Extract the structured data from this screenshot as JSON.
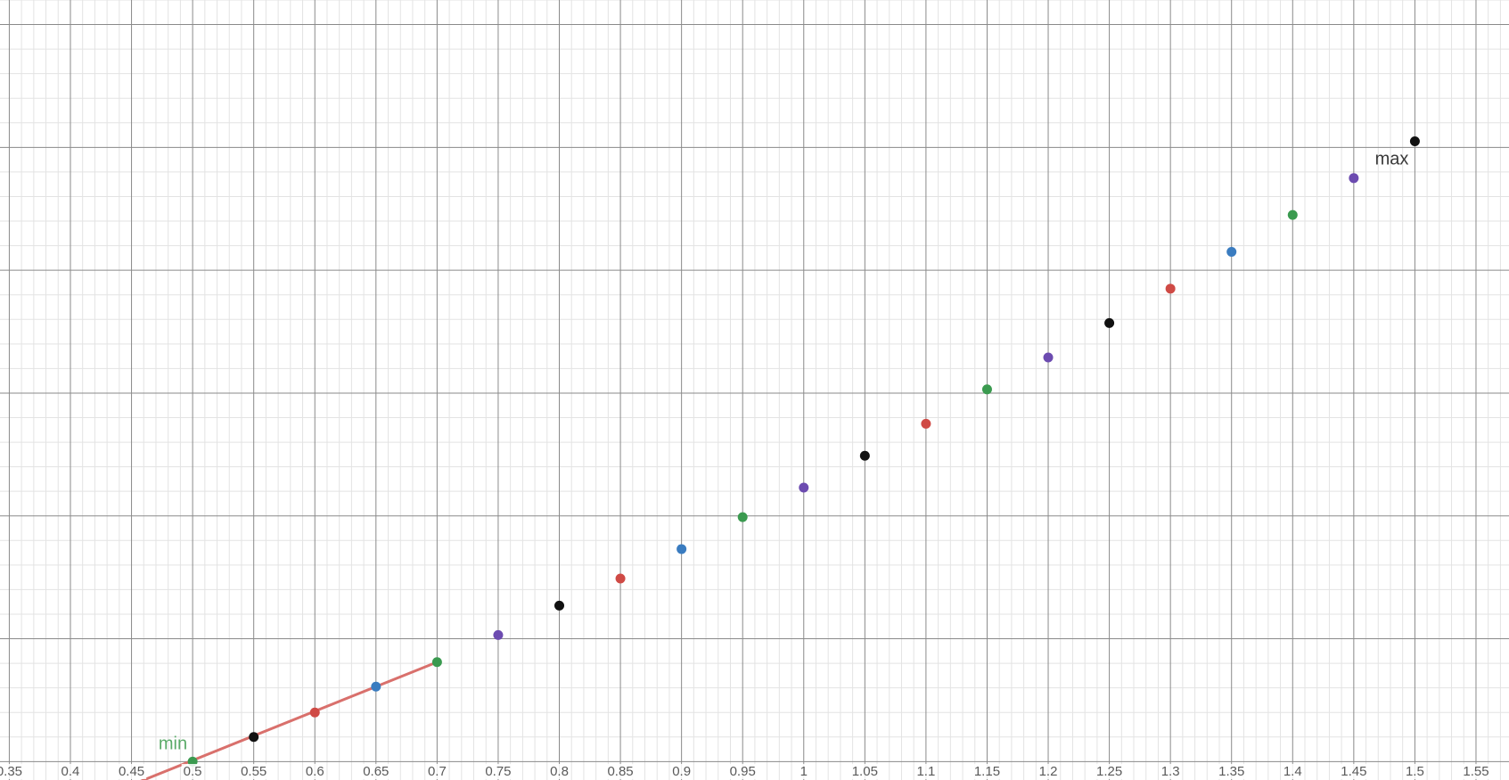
{
  "chart_data": {
    "type": "scatter",
    "title": "",
    "xlabel": "",
    "ylabel": "",
    "xlim": [
      0.3424,
      1.577
    ],
    "ylim": [
      -0.015,
      0.62
    ],
    "grid": true,
    "x_ticks": [
      0.35,
      0.4,
      0.45,
      0.5,
      0.55,
      0.6,
      0.65,
      0.7,
      0.75,
      0.8,
      0.85,
      0.9,
      0.95,
      1,
      1.05,
      1.1,
      1.15,
      1.2,
      1.25,
      1.3,
      1.35,
      1.4,
      1.45,
      1.5,
      1.55
    ],
    "x_tick_labels": [
      "0.35",
      "0.4",
      "0.45",
      "0.5",
      "0.55",
      "0.6",
      "0.65",
      "0.7",
      "0.75",
      "0.8",
      "0.85",
      "0.9",
      "0.95",
      "1",
      "1.05",
      "1.1",
      "1.15",
      "1.2",
      "1.25",
      "1.3",
      "1.35",
      "1.4",
      "1.45",
      "1.5",
      "1.55"
    ],
    "points": [
      {
        "x": 0.5,
        "y": 0.0,
        "color": "#3a9a4f"
      },
      {
        "x": 0.55,
        "y": 0.02,
        "color": "#111111"
      },
      {
        "x": 0.6,
        "y": 0.04,
        "color": "#cf4a45"
      },
      {
        "x": 0.65,
        "y": 0.061,
        "color": "#3a7cc0"
      },
      {
        "x": 0.7,
        "y": 0.081,
        "color": "#3a9a4f"
      },
      {
        "x": 0.75,
        "y": 0.103,
        "color": "#6c4bb0"
      },
      {
        "x": 0.8,
        "y": 0.127,
        "color": "#111111"
      },
      {
        "x": 0.85,
        "y": 0.149,
        "color": "#cf4a45"
      },
      {
        "x": 0.9,
        "y": 0.173,
        "color": "#3a7cc0"
      },
      {
        "x": 0.95,
        "y": 0.199,
        "color": "#3a9a4f"
      },
      {
        "x": 1.0,
        "y": 0.223,
        "color": "#6c4bb0"
      },
      {
        "x": 1.05,
        "y": 0.249,
        "color": "#111111"
      },
      {
        "x": 1.1,
        "y": 0.275,
        "color": "#cf4a45"
      },
      {
        "x": 1.15,
        "y": 0.303,
        "color": "#3a9a4f"
      },
      {
        "x": 1.2,
        "y": 0.329,
        "color": "#6c4bb0"
      },
      {
        "x": 1.25,
        "y": 0.357,
        "color": "#111111"
      },
      {
        "x": 1.3,
        "y": 0.385,
        "color": "#cf4a45"
      },
      {
        "x": 1.35,
        "y": 0.415,
        "color": "#3a7cc0"
      },
      {
        "x": 1.4,
        "y": 0.445,
        "color": "#3a9a4f"
      },
      {
        "x": 1.45,
        "y": 0.475,
        "color": "#6c4bb0"
      },
      {
        "x": 1.5,
        "y": 0.505,
        "color": "#111111"
      }
    ],
    "segment": {
      "x": [
        0.43,
        0.7
      ],
      "y": [
        -0.027,
        0.081
      ],
      "color": "#d9706c"
    },
    "annotations": [
      {
        "text": "min",
        "x": 0.5,
        "y": 0.0,
        "color": "#5aaa68",
        "anchor": "end",
        "dx": -6,
        "dy": -14
      },
      {
        "text": "max",
        "x": 1.5,
        "y": 0.505,
        "color": "#3a3a3a",
        "anchor": "end",
        "dx": -7,
        "dy": 26
      }
    ]
  }
}
